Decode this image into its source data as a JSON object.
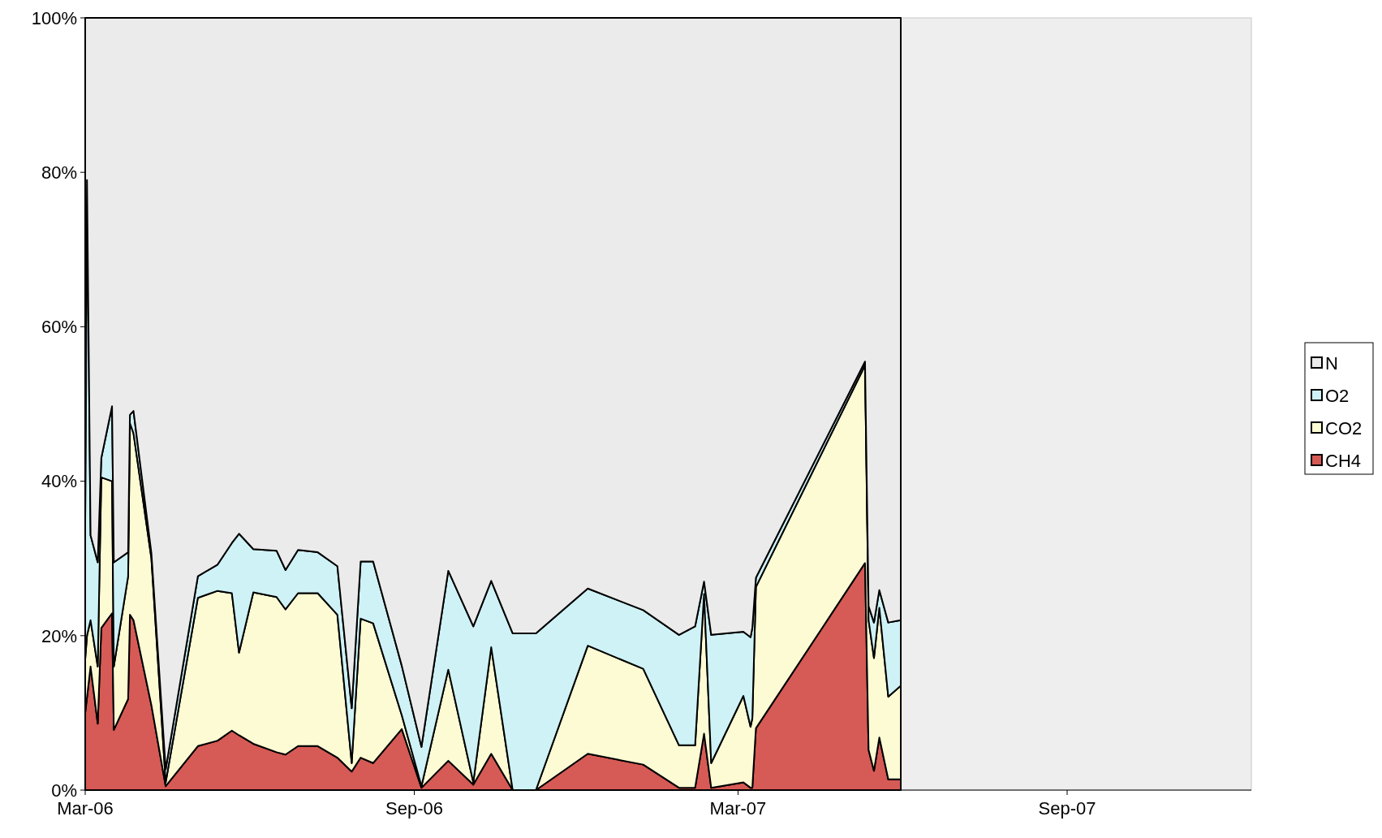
{
  "chart_data": {
    "type": "area",
    "stacked": true,
    "legend": "right",
    "grid": false,
    "x": [
      "2006-03-01",
      "2006-03-02",
      "2006-03-04",
      "2006-03-08",
      "2006-03-10",
      "2006-03-16",
      "2006-03-17",
      "2006-03-25",
      "2006-03-26",
      "2006-03-28",
      "2006-04-07",
      "2006-04-15",
      "2006-05-03",
      "2006-05-14",
      "2006-05-22",
      "2006-05-26",
      "2006-06-03",
      "2006-06-16",
      "2006-06-21",
      "2006-06-28",
      "2006-07-09",
      "2006-07-20",
      "2006-07-28",
      "2006-08-02",
      "2006-08-09",
      "2006-08-25",
      "2006-09-05",
      "2006-09-20",
      "2006-10-04",
      "2006-10-14",
      "2006-10-26",
      "2006-11-08",
      "2006-12-07",
      "2007-01-07",
      "2007-01-27",
      "2007-02-05",
      "2007-02-10",
      "2007-02-14",
      "2007-03-04",
      "2007-03-08",
      "2007-03-09",
      "2007-03-11",
      "2007-05-11",
      "2007-05-13",
      "2007-05-16",
      "2007-05-19",
      "2007-05-24",
      "2007-05-31"
    ],
    "series": [
      {
        "name": "CH4",
        "color": "#d65a55",
        "values": [
          10,
          12,
          16,
          8.6,
          21,
          22.9,
          7.8,
          11.8,
          22.7,
          22,
          11,
          0.5,
          5.7,
          6.4,
          7.7,
          7.1,
          6,
          4.9,
          4.6,
          5.7,
          5.7,
          4.2,
          2.4,
          4.2,
          3.5,
          7.9,
          0.3,
          3.8,
          0.7,
          4.7,
          0,
          0,
          4.7,
          3.3,
          0.3,
          0.3,
          7.3,
          0.3,
          1,
          0.3,
          0.3,
          8,
          29.4,
          5.2,
          2.5,
          6.8,
          1.4,
          1.4
        ]
      },
      {
        "name": "CO2",
        "color": "#fdfbd3",
        "values": [
          7,
          8,
          6,
          7.4,
          19.5,
          17.1,
          8.2,
          15.9,
          24.8,
          24.2,
          19,
          0.5,
          19.2,
          19.4,
          17.8,
          10.7,
          19.6,
          20.1,
          18.8,
          19.8,
          19.8,
          18.5,
          1.1,
          18,
          18.1,
          1.8,
          0.2,
          11.8,
          0.3,
          13.8,
          0,
          0,
          14,
          12.4,
          5.5,
          5.5,
          18.1,
          3.2,
          11.2,
          7.9,
          9,
          18.3,
          25.6,
          16.8,
          14.6,
          16.8,
          10.7,
          12.1
        ]
      },
      {
        "name": "O2",
        "color": "#cef2f6",
        "values": [
          18,
          59,
          11,
          13.5,
          2.5,
          9.7,
          13.5,
          3.1,
          1.1,
          2.9,
          0.7,
          1.7,
          2.8,
          3.4,
          6.5,
          15.4,
          5.6,
          6,
          5.1,
          5.6,
          5.3,
          6.3,
          7.1,
          7.4,
          8,
          6.4,
          5.1,
          12.8,
          20.2,
          8.6,
          20.3,
          20.3,
          7.4,
          7.6,
          14.3,
          15.4,
          1.6,
          16.6,
          8.3,
          11.6,
          11.7,
          1.2,
          0.5,
          1.8,
          4.6,
          2.3,
          9.6,
          8.5
        ]
      },
      {
        "name": "N",
        "color": "#ebebeb",
        "values": [
          65,
          21,
          67,
          70.5,
          57,
          50.3,
          70.5,
          69.2,
          51.4,
          50.9,
          69.3,
          97.3,
          72.3,
          70.8,
          68,
          66.8,
          68.8,
          69,
          71.5,
          68.9,
          69.2,
          71,
          89.4,
          70.4,
          70.4,
          83.9,
          94.4,
          71.6,
          78.8,
          72.9,
          79.7,
          79.7,
          73.9,
          76.7,
          79.9,
          78.8,
          73,
          79.9,
          79.5,
          80.2,
          79,
          72.5,
          44.5,
          76.2,
          78.3,
          74.1,
          78.3,
          78
        ]
      }
    ],
    "xlim": [
      "2006-03-01",
      "2007-12-13"
    ],
    "xticks": [
      {
        "value": "2006-03-01",
        "label": "Mar-06"
      },
      {
        "value": "2006-09-01",
        "label": "Sep-06"
      },
      {
        "value": "2007-03-01",
        "label": "Mar-07"
      },
      {
        "value": "2007-09-01",
        "label": "Sep-07"
      }
    ],
    "ylim": [
      0,
      100
    ],
    "yticks": [
      {
        "value": 0,
        "label": "0%"
      },
      {
        "value": 20,
        "label": "20%"
      },
      {
        "value": 40,
        "label": "40%"
      },
      {
        "value": 60,
        "label": "60%"
      },
      {
        "value": 80,
        "label": "80%"
      },
      {
        "value": 100,
        "label": "100%"
      }
    ]
  }
}
